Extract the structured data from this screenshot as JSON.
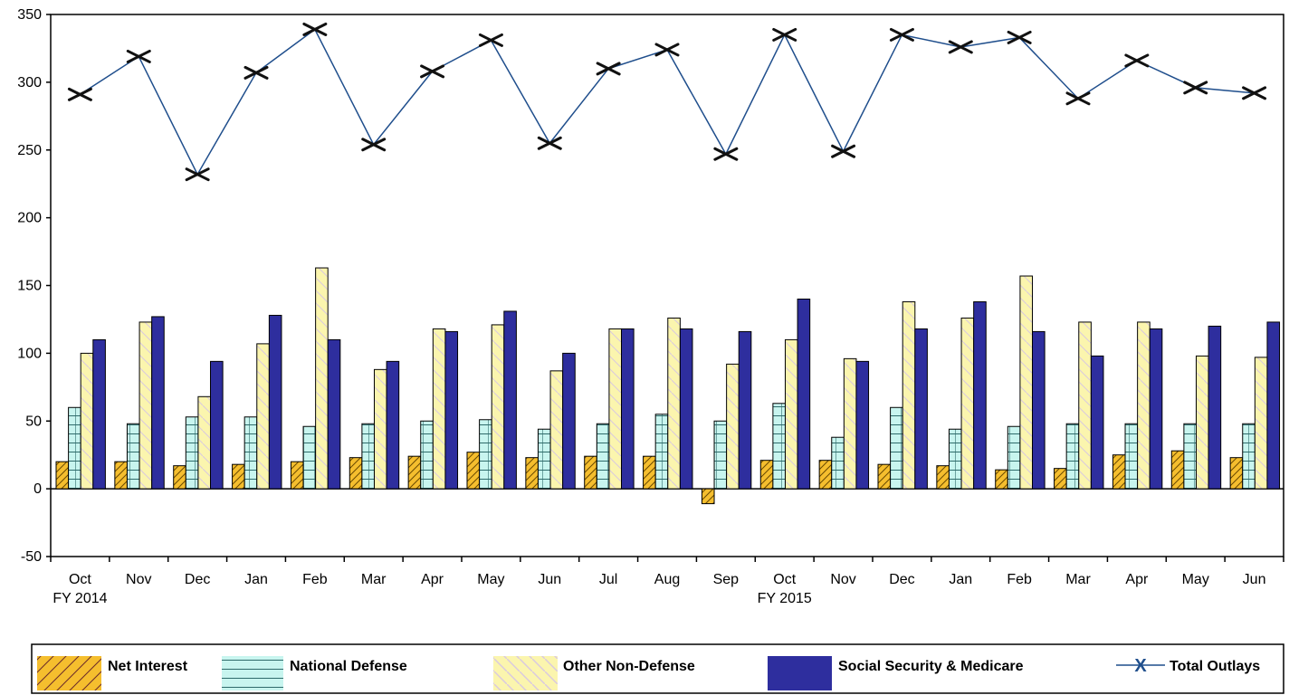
{
  "chart_data": {
    "type": "bar",
    "categories": [
      "Oct",
      "Nov",
      "Dec",
      "Jan",
      "Feb",
      "Mar",
      "Apr",
      "May",
      "Jun",
      "Jul",
      "Aug",
      "Sep",
      "Oct",
      "Nov",
      "Dec",
      "Jan",
      "Feb",
      "Mar",
      "Apr",
      "May",
      "Jun"
    ],
    "year_labels": [
      {
        "index": 0,
        "text": "FY 2014"
      },
      {
        "index": 12,
        "text": "FY 2015"
      }
    ],
    "ylim": [
      -50,
      350
    ],
    "yticks": [
      -50,
      0,
      50,
      100,
      150,
      200,
      250,
      300,
      350
    ],
    "legend_position": "bottom",
    "series": [
      {
        "name": "Net Interest",
        "type": "bar",
        "color": "#F5BE2E",
        "values": [
          20,
          20,
          17,
          18,
          20,
          23,
          24,
          27,
          23,
          24,
          24,
          -11,
          21,
          21,
          18,
          17,
          14,
          15,
          25,
          28,
          23
        ]
      },
      {
        "name": "National Defense",
        "type": "bar",
        "color": "#C8F5EF",
        "values": [
          60,
          48,
          53,
          53,
          46,
          48,
          50,
          51,
          44,
          48,
          55,
          50,
          63,
          38,
          60,
          44,
          46,
          48,
          48,
          48,
          48
        ]
      },
      {
        "name": "Other Non-Defense",
        "type": "bar",
        "color": "#FBF5AE",
        "values": [
          100,
          123,
          68,
          107,
          163,
          88,
          118,
          121,
          87,
          118,
          126,
          92,
          110,
          96,
          138,
          126,
          157,
          123,
          123,
          98,
          97
        ]
      },
      {
        "name": "Social Security & Medicare",
        "type": "bar",
        "color": "#2E2E9E",
        "values": [
          110,
          127,
          94,
          128,
          110,
          94,
          116,
          131,
          100,
          118,
          118,
          116,
          140,
          94,
          118,
          138,
          116,
          98,
          118,
          120,
          123
        ]
      },
      {
        "name": "Total Outlays",
        "type": "line",
        "color": "#1F4E8C",
        "values": [
          291,
          319,
          232,
          307,
          339,
          254,
          308,
          331,
          255,
          310,
          324,
          247,
          335,
          249,
          335,
          326,
          333,
          288,
          316,
          296,
          292
        ]
      }
    ]
  }
}
